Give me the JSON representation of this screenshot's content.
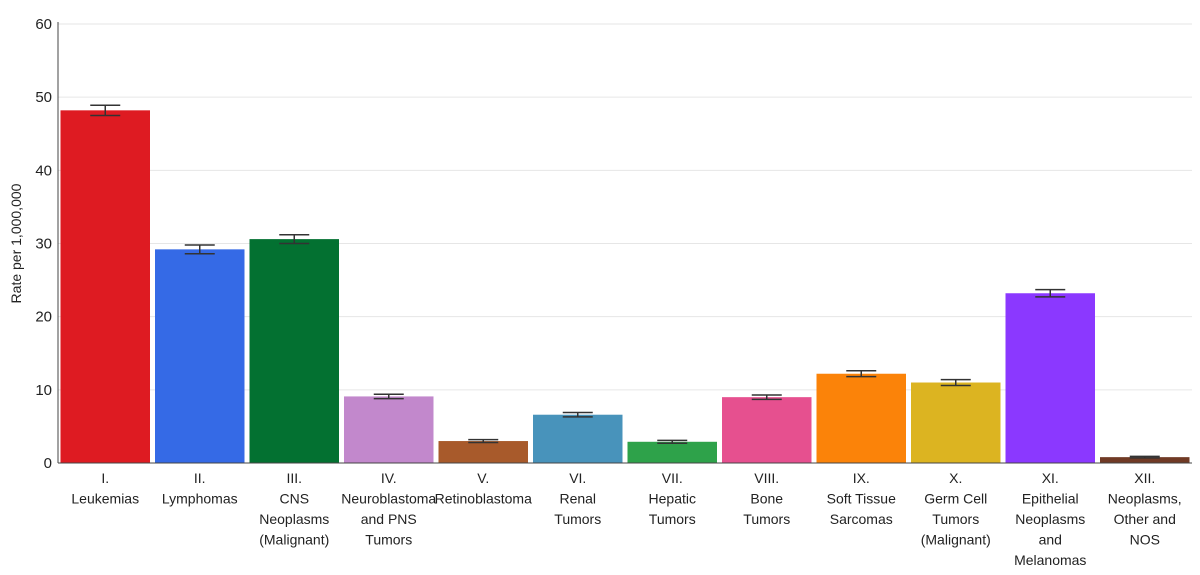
{
  "chart_data": {
    "type": "bar",
    "title": "",
    "xlabel": "",
    "ylabel": "Rate per 1,000,000",
    "ylim": [
      0,
      60
    ],
    "yticks": [
      0,
      10,
      20,
      30,
      40,
      50,
      60
    ],
    "grid": true,
    "error_bars": true,
    "categories": [
      [
        "I.",
        "Leukemias"
      ],
      [
        "II.",
        "Lymphomas"
      ],
      [
        "III.",
        "CNS",
        "Neoplasms",
        "(Malignant)"
      ],
      [
        "IV.",
        "Neuroblastoma",
        "and PNS",
        "Tumors"
      ],
      [
        "V.",
        "Retinoblastoma"
      ],
      [
        "VI.",
        "Renal",
        "Tumors"
      ],
      [
        "VII.",
        "Hepatic",
        "Tumors"
      ],
      [
        "VIII.",
        "Bone",
        "Tumors"
      ],
      [
        "IX.",
        "Soft Tissue",
        "Sarcomas"
      ],
      [
        "X.",
        "Germ Cell",
        "Tumors",
        "(Malignant)"
      ],
      [
        "XI.",
        "Epithelial",
        "Neoplasms",
        "and",
        "Melanomas"
      ],
      [
        "XII.",
        "Neoplasms,",
        "Other and",
        "NOS"
      ]
    ],
    "values": [
      48.2,
      29.2,
      30.6,
      9.1,
      3.0,
      6.6,
      2.9,
      9.0,
      12.2,
      11.0,
      23.2,
      0.8
    ],
    "error_low": [
      47.5,
      28.6,
      30.0,
      8.8,
      2.8,
      6.3,
      2.7,
      8.7,
      11.8,
      10.6,
      22.7,
      0.7
    ],
    "error_high": [
      48.9,
      29.8,
      31.2,
      9.4,
      3.2,
      6.9,
      3.1,
      9.3,
      12.6,
      11.4,
      23.7,
      0.9
    ],
    "colors": [
      "#de1b22",
      "#356ae6",
      "#037131",
      "#c288cc",
      "#a85a2b",
      "#4893bb",
      "#2ea24a",
      "#e6508f",
      "#fb8309",
      "#dcb421",
      "#8b38ff",
      "#703a25"
    ]
  }
}
